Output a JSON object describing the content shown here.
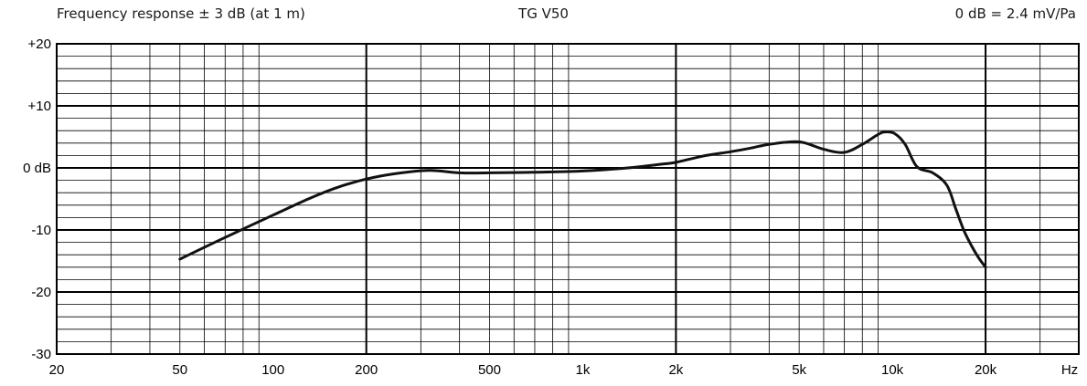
{
  "header": {
    "left": "Frequency response ± 3 dB (at 1 m)",
    "center": "TG V50",
    "right": "0 dB = 2.4 mV/Pa"
  },
  "chart_data": {
    "type": "line",
    "xscale": "log",
    "xlim": [
      20,
      40000
    ],
    "ylim": [
      -30,
      20
    ],
    "grid": true,
    "x_ticks": [
      {
        "value": 20,
        "label": "20"
      },
      {
        "value": 50,
        "label": "50"
      },
      {
        "value": 100,
        "label": "100"
      },
      {
        "value": 200,
        "label": "200"
      },
      {
        "value": 500,
        "label": "500"
      },
      {
        "value": 1000,
        "label": "1k"
      },
      {
        "value": 2000,
        "label": "2k"
      },
      {
        "value": 5000,
        "label": "5k"
      },
      {
        "value": 10000,
        "label": "10k"
      },
      {
        "value": 20000,
        "label": "20k"
      }
    ],
    "x_unit_label": "Hz",
    "y_ticks": [
      {
        "value": 20,
        "label": "+20"
      },
      {
        "value": 10,
        "label": "+10"
      },
      {
        "value": 0,
        "label": "0 dB"
      },
      {
        "value": -10,
        "label": "-10"
      },
      {
        "value": -20,
        "label": "-20"
      },
      {
        "value": -30,
        "label": "-30"
      }
    ],
    "series": [
      {
        "color": "#111111",
        "x": [
          50,
          70,
          100,
          130,
          160,
          200,
          250,
          320,
          400,
          500,
          700,
          1000,
          1400,
          1800,
          2000,
          2500,
          3000,
          3500,
          4000,
          5000,
          6000,
          7000,
          8000,
          9000,
          9500,
          10200,
          11000,
          12000,
          13500,
          15000,
          16000,
          17000,
          18000,
          19000,
          20000
        ],
        "y": [
          -14.7,
          -11.2,
          -7.6,
          -5.0,
          -3.2,
          -1.8,
          -0.9,
          -0.4,
          -0.8,
          -0.8,
          -0.7,
          -0.5,
          0.0,
          0.6,
          0.9,
          2.0,
          2.6,
          3.2,
          3.8,
          4.2,
          3.0,
          2.5,
          3.8,
          5.4,
          5.8,
          5.5,
          3.8,
          0.2,
          -0.8,
          -2.8,
          -6.5,
          -10.0,
          -12.5,
          -14.5,
          -16.0
        ]
      }
    ]
  }
}
